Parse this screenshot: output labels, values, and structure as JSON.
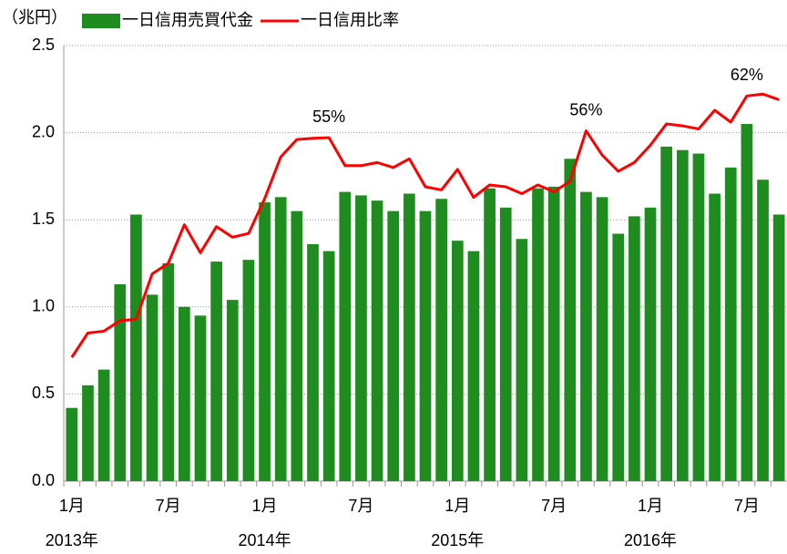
{
  "chart_data": {
    "type": "bar_line",
    "y_label": "（兆円）",
    "categories": [
      "1月",
      null,
      null,
      null,
      null,
      null,
      "7月",
      null,
      null,
      null,
      null,
      null,
      "1月",
      null,
      null,
      null,
      null,
      null,
      "7月",
      null,
      null,
      null,
      null,
      null,
      "1月",
      null,
      null,
      null,
      null,
      null,
      "7月",
      null,
      null,
      null,
      null,
      null,
      "1月",
      null,
      null,
      null,
      null,
      null,
      "7月",
      null,
      null
    ],
    "x_groups": [
      "2013年",
      "2014年",
      "2015年",
      "2016年"
    ],
    "ylim": [
      0,
      2.5
    ],
    "yticks": [
      {
        "value": 0,
        "label": "0.0"
      },
      0.5,
      {
        "value": 1,
        "label": "1.0"
      },
      1.5,
      {
        "value": 2,
        "label": "2.0"
      },
      2.5
    ],
    "y2lim": [
      0,
      70
    ],
    "grid": true,
    "series": [
      {
        "name": "一日信用売買代金",
        "color": "#1e8c1e",
        "kind": "bar",
        "values": [
          0.42,
          0.55,
          0.64,
          1.13,
          1.53,
          1.07,
          1.25,
          1.0,
          0.95,
          1.26,
          1.04,
          1.27,
          1.6,
          1.63,
          1.55,
          1.36,
          1.32,
          1.66,
          1.64,
          1.61,
          1.55,
          1.65,
          1.55,
          1.62,
          1.38,
          1.32,
          1.68,
          1.57,
          1.39,
          1.68,
          1.69,
          1.85,
          1.66,
          1.63,
          1.42,
          1.52,
          1.57,
          1.92,
          1.9,
          1.88,
          1.65,
          1.8,
          2.05,
          1.73,
          1.53
        ]
      },
      {
        "name": "一日信用比率",
        "color": "#ff0000",
        "kind": "line",
        "axis": "y2",
        "values": [
          19.9,
          23.8,
          24.1,
          25.8,
          26.0,
          33.3,
          35.0,
          41.2,
          36.7,
          40.9,
          39.2,
          39.8,
          45.4,
          52.1,
          54.9,
          55.1,
          55.2,
          50.7,
          50.7,
          51.2,
          50.4,
          51.8,
          47.3,
          46.8,
          50.1,
          45.6,
          47.6,
          47.3,
          46.2,
          47.6,
          46.5,
          48.2,
          56.3,
          52.4,
          49.8,
          51.2,
          54.0,
          57.4,
          57.1,
          56.6,
          59.6,
          57.7,
          61.9,
          62.2,
          61.3
        ],
        "value_labels": [
          null,
          null,
          null,
          null,
          null,
          null,
          null,
          null,
          null,
          null,
          null,
          null,
          null,
          null,
          null,
          null,
          "55%",
          null,
          null,
          null,
          null,
          null,
          null,
          null,
          null,
          null,
          null,
          null,
          null,
          null,
          null,
          null,
          "56%",
          null,
          null,
          null,
          null,
          null,
          null,
          null,
          null,
          null,
          "62%",
          null,
          null
        ]
      }
    ]
  }
}
